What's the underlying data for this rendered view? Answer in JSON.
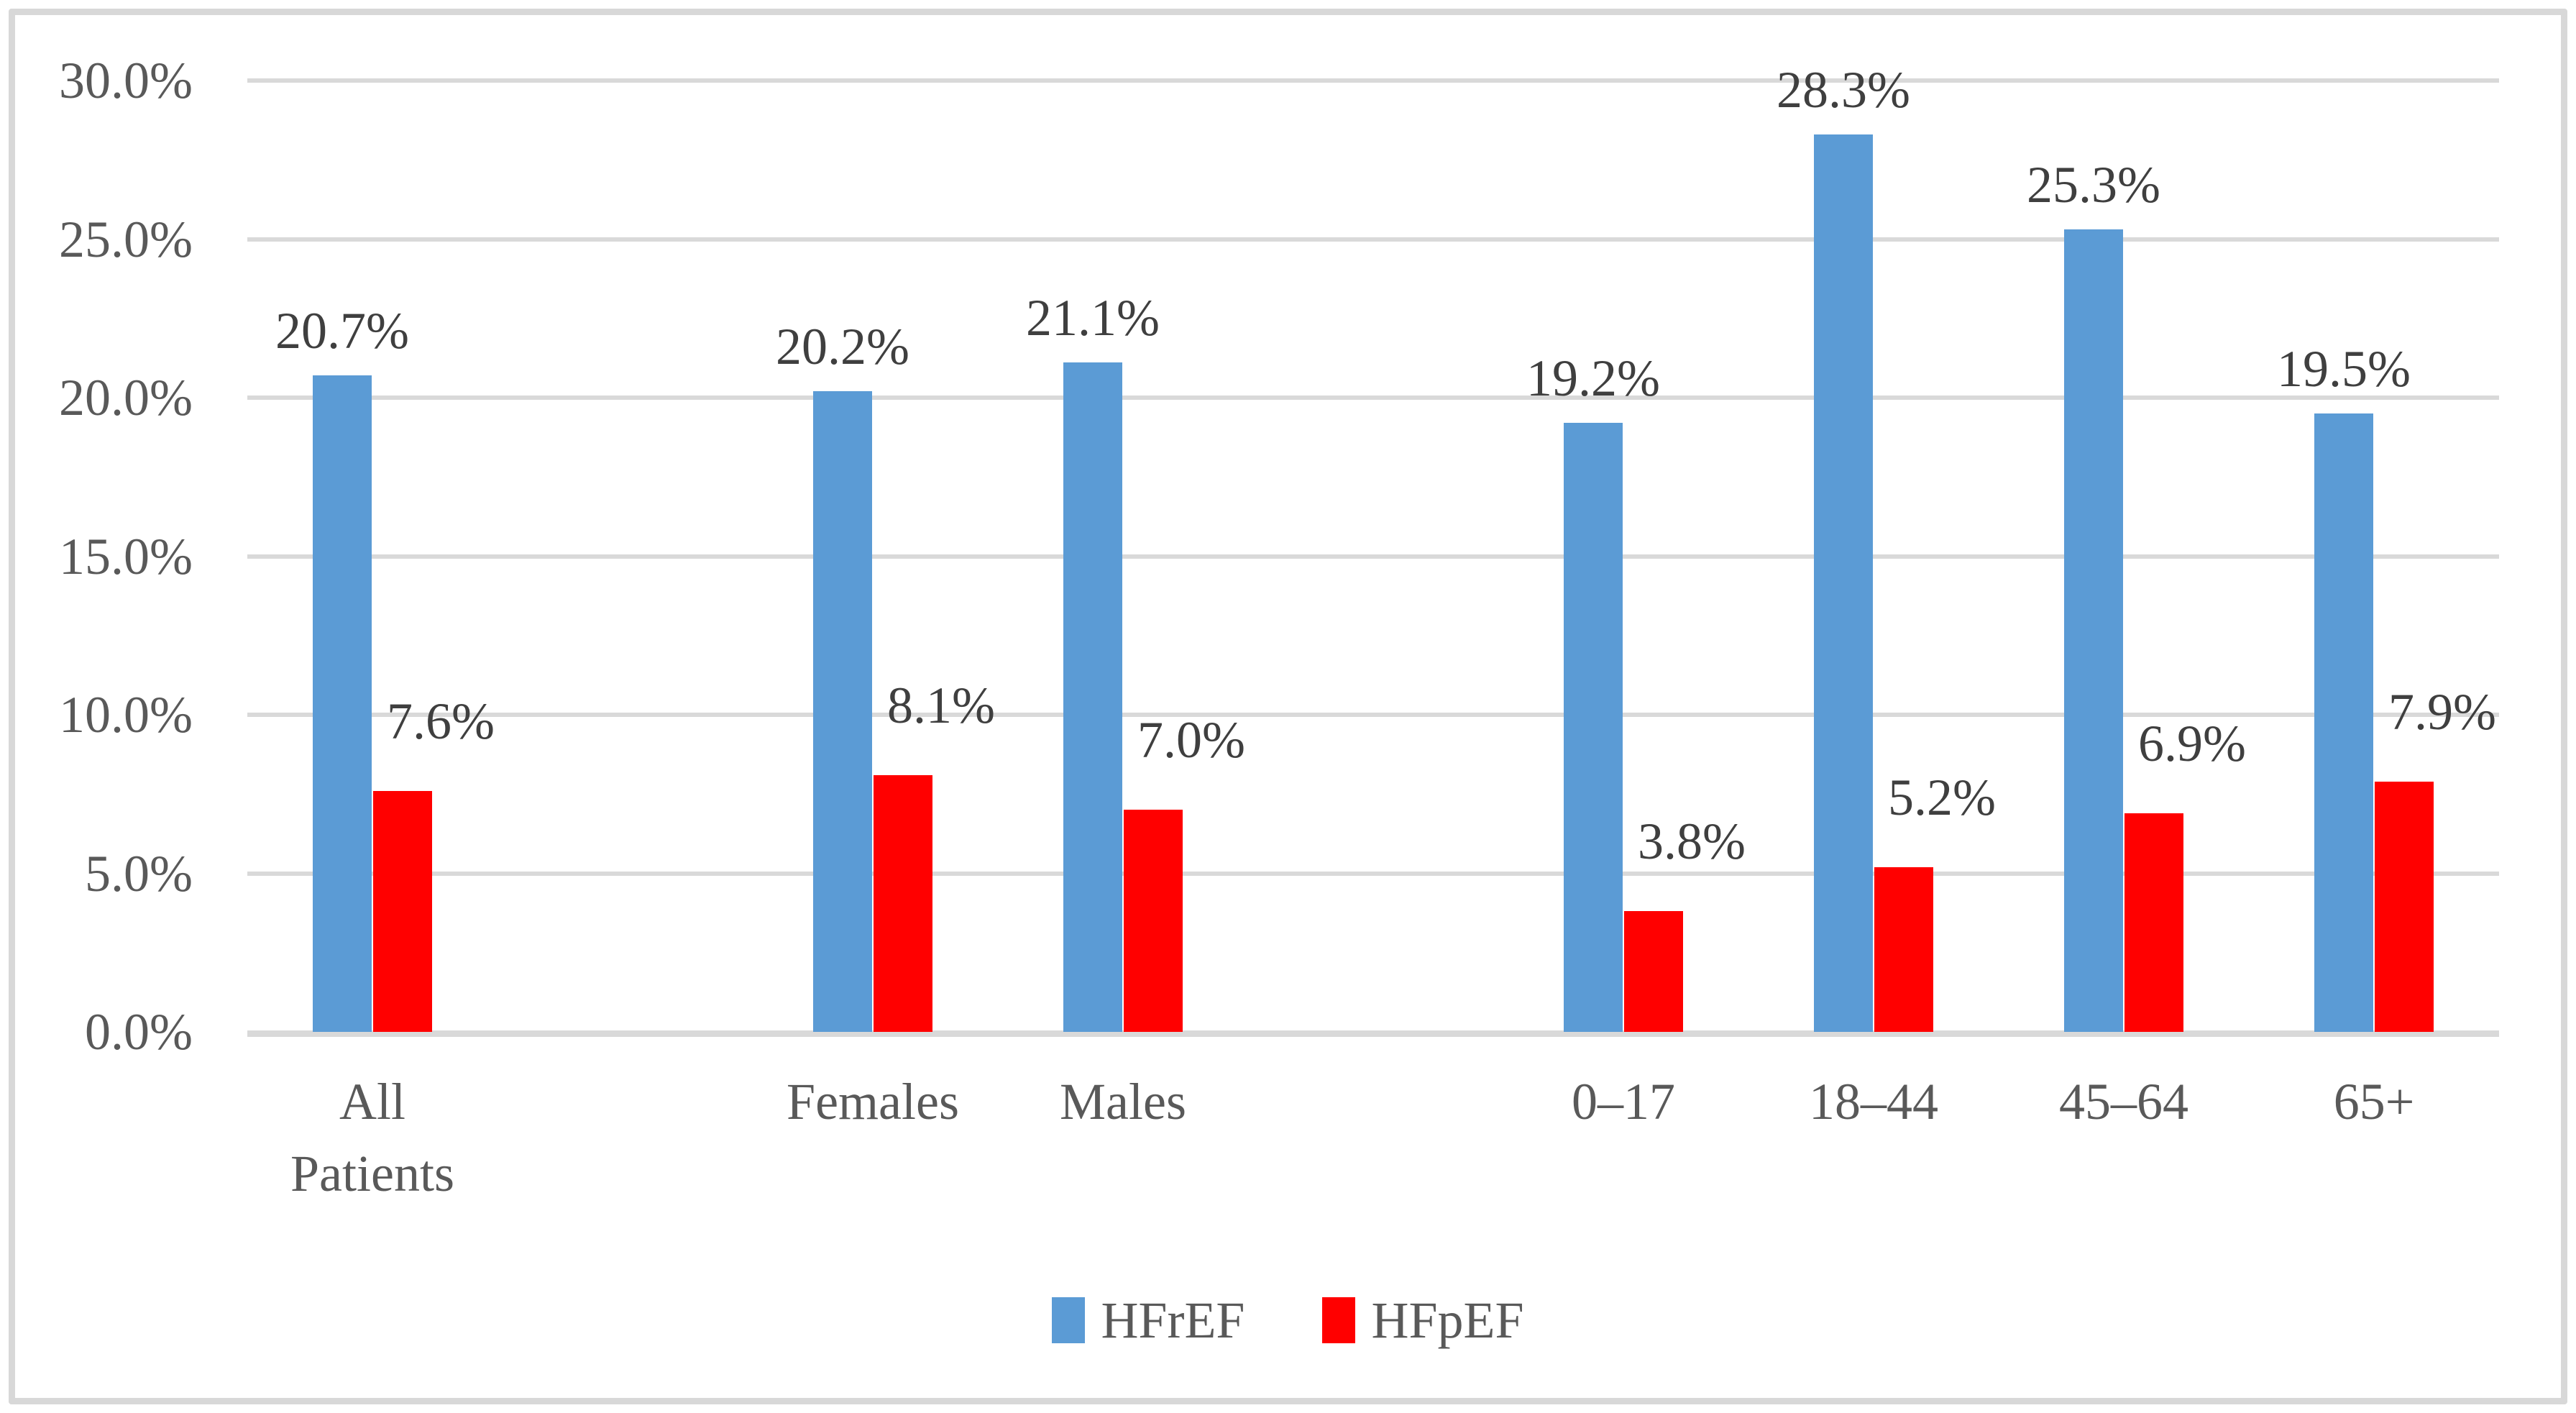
{
  "chart_data": {
    "type": "bar",
    "title": "",
    "xlabel": "",
    "ylabel": "",
    "categories": [
      "All Patients",
      "Females",
      "Males",
      "0–17",
      "18–44",
      "45–64",
      "65+"
    ],
    "category_label_lines": [
      [
        "All",
        "Patients"
      ],
      [
        "Females"
      ],
      [
        "Males"
      ],
      [
        "0–17"
      ],
      [
        "18–44"
      ],
      [
        "45–64"
      ],
      [
        "65+"
      ]
    ],
    "series": [
      {
        "name": "HFrEF",
        "color": "#5b9bd5",
        "values": [
          20.7,
          20.2,
          21.1,
          19.2,
          28.3,
          25.3,
          19.5
        ],
        "labels": [
          "20.7%",
          "20.2%",
          "21.1%",
          "19.2%",
          "28.3%",
          "25.3%",
          "19.5%"
        ]
      },
      {
        "name": "HFpEF",
        "color": "#ff0000",
        "values": [
          7.6,
          8.1,
          7.0,
          3.8,
          5.2,
          6.9,
          7.9
        ],
        "labels": [
          "7.6%",
          "8.1%",
          "7.0%",
          "3.8%",
          "5.2%",
          "6.9%",
          "7.9%"
        ]
      }
    ],
    "y_axis": {
      "min": 0,
      "max": 30,
      "tick_step": 5,
      "tick_labels": [
        "0.0%",
        "5.0%",
        "10.0%",
        "15.0%",
        "20.0%",
        "25.0%",
        "30.0%"
      ]
    },
    "layout_hints": {
      "grid": true,
      "legend_position": "bottom",
      "category_slots": [
        0,
        2,
        3,
        5,
        6,
        7,
        8
      ],
      "total_slots": 9
    },
    "colors": {
      "gridline": "#d9d9d9",
      "axis_text": "#595959",
      "data_label_text": "#3f3f3f",
      "border": "#d8d8d8"
    }
  },
  "legend": {
    "entries": [
      {
        "label": "HFrEF"
      },
      {
        "label": "HFpEF"
      }
    ]
  }
}
